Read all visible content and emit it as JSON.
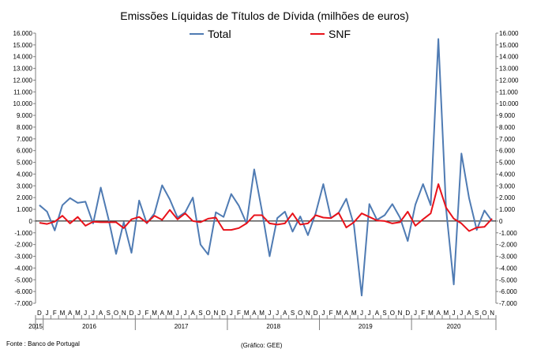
{
  "footer": {
    "source": "Fonte : Banco de Portugal",
    "credit": "(Gráfico: GEE)"
  },
  "colors": {
    "total": "#4f7bb3",
    "snf": "#e8121a",
    "axis": "#7f7f7f",
    "zero_line": "#000000"
  },
  "chart_data": {
    "type": "line",
    "title": "Emissões Líquidas de Títulos de Dívida (milhões de euros)",
    "xlabel": "",
    "ylabel": "",
    "ylim": [
      -7000,
      16000
    ],
    "yticks": [
      "16.000",
      "15.000",
      "14.000",
      "13.000",
      "12.000",
      "11.000",
      "10.000",
      "9.000",
      "8.000",
      "7.000",
      "6.000",
      "5.000",
      "4.000",
      "3.000",
      "2.000",
      "1.000",
      "0",
      "-1.000",
      "-2.000",
      "-3.000",
      "-4.000",
      "-5.000",
      "-6.000",
      "-7.000"
    ],
    "ytick_values": [
      16000,
      15000,
      14000,
      13000,
      12000,
      11000,
      10000,
      9000,
      8000,
      7000,
      6000,
      5000,
      4000,
      3000,
      2000,
      1000,
      0,
      -1000,
      -2000,
      -3000,
      -4000,
      -5000,
      -6000,
      -7000
    ],
    "legend_position": "top-center",
    "grid": false,
    "secondary_y_axis": true,
    "categories": [
      "D",
      "J",
      "F",
      "M",
      "A",
      "M",
      "J",
      "J",
      "A",
      "S",
      "O",
      "N",
      "D",
      "J",
      "F",
      "M",
      "A",
      "M",
      "J",
      "J",
      "A",
      "S",
      "O",
      "N",
      "D",
      "J",
      "F",
      "M",
      "A",
      "M",
      "J",
      "J",
      "A",
      "S",
      "O",
      "N",
      "D",
      "J",
      "F",
      "M",
      "A",
      "M",
      "J",
      "J",
      "A",
      "S",
      "O",
      "N",
      "D",
      "J",
      "F",
      "M",
      "A",
      "M",
      "J",
      "J",
      "A",
      "S",
      "O",
      "N"
    ],
    "years": [
      {
        "label": "2015",
        "start": 0,
        "end": 0
      },
      {
        "label": "2016",
        "start": 1,
        "end": 12
      },
      {
        "label": "2017",
        "start": 13,
        "end": 24
      },
      {
        "label": "2018",
        "start": 25,
        "end": 36
      },
      {
        "label": "2019",
        "start": 37,
        "end": 48
      },
      {
        "label": "2020",
        "start": 49,
        "end": 59
      }
    ],
    "series": [
      {
        "name": "Total",
        "color": "#4f7bb3",
        "values": [
          1350,
          800,
          -800,
          1350,
          1950,
          1550,
          1650,
          -200,
          2850,
          200,
          -2800,
          -100,
          -2700,
          1750,
          -200,
          650,
          3050,
          1850,
          300,
          750,
          2000,
          -2000,
          -2850,
          750,
          350,
          2300,
          1300,
          -200,
          4400,
          900,
          -3000,
          250,
          800,
          -900,
          400,
          -1200,
          650,
          3150,
          250,
          700,
          1900,
          -350,
          -6350,
          1450,
          100,
          500,
          1450,
          300,
          -1700,
          1400,
          3150,
          1350,
          15500,
          1100,
          -5400,
          5750,
          1950,
          -750,
          900,
          0
        ]
      },
      {
        "name": "SNF",
        "color": "#e8121a",
        "values": [
          -150,
          -250,
          -50,
          450,
          -200,
          350,
          -400,
          -50,
          -100,
          -100,
          -100,
          -600,
          150,
          350,
          -150,
          450,
          100,
          950,
          150,
          650,
          0,
          -100,
          200,
          300,
          -750,
          -750,
          -600,
          -200,
          500,
          500,
          -200,
          -300,
          -200,
          650,
          -300,
          -200,
          500,
          300,
          250,
          700,
          -550,
          -100,
          650,
          350,
          50,
          0,
          -200,
          -100,
          800,
          -400,
          150,
          650,
          3150,
          1150,
          200,
          -200,
          -850,
          -550,
          -500,
          200
        ]
      }
    ]
  }
}
